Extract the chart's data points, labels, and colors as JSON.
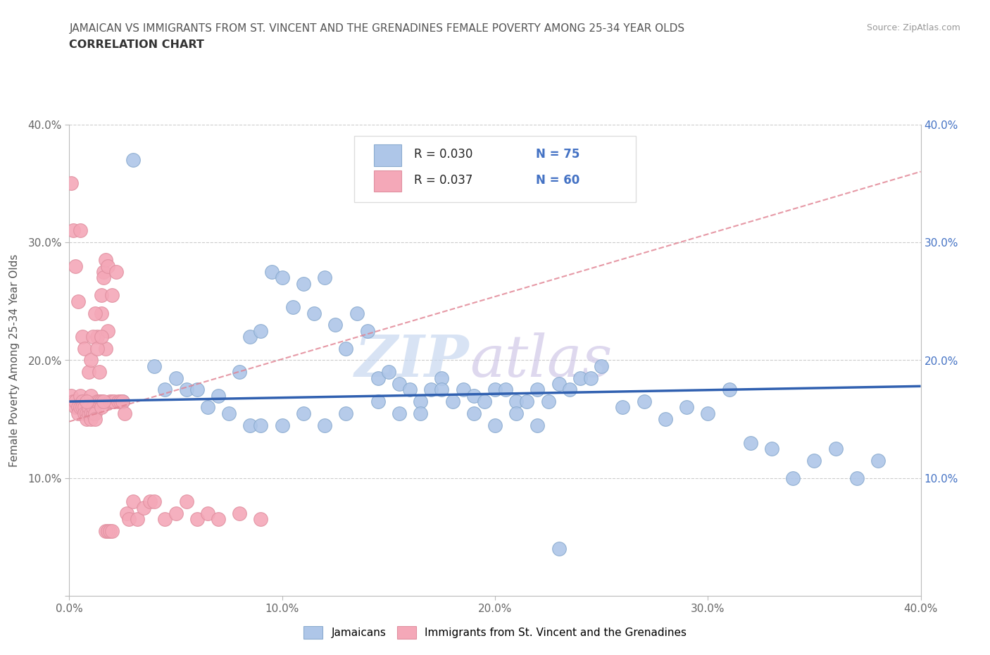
{
  "title_line1": "JAMAICAN VS IMMIGRANTS FROM ST. VINCENT AND THE GRENADINES FEMALE POVERTY AMONG 25-34 YEAR OLDS",
  "title_line2": "CORRELATION CHART",
  "source": "Source: ZipAtlas.com",
  "ylabel": "Female Poverty Among 25-34 Year Olds",
  "xlim": [
    0.0,
    0.4
  ],
  "ylim": [
    0.0,
    0.4
  ],
  "xtick_labels": [
    "0.0%",
    "10.0%",
    "20.0%",
    "30.0%",
    "40.0%"
  ],
  "xtick_vals": [
    0.0,
    0.1,
    0.2,
    0.3,
    0.4
  ],
  "ytick_labels": [
    "",
    "10.0%",
    "20.0%",
    "30.0%",
    "40.0%"
  ],
  "ytick_vals": [
    0.0,
    0.1,
    0.2,
    0.3,
    0.4
  ],
  "right_ytick_labels": [
    "10.0%",
    "20.0%",
    "30.0%",
    "40.0%"
  ],
  "right_ytick_vals": [
    0.1,
    0.2,
    0.3,
    0.4
  ],
  "blue_color": "#aec6e8",
  "pink_color": "#f4a8b8",
  "line_blue_color": "#3060b0",
  "line_pink_dashed_color": "#e08090",
  "watermark_zip": "ZIP",
  "watermark_atlas": "atlas",
  "legend_label1": "Jamaicans",
  "legend_label2": "Immigrants from St. Vincent and the Grenadines",
  "j_x": [
    0.005,
    0.015,
    0.025,
    0.03,
    0.04,
    0.045,
    0.05,
    0.055,
    0.06,
    0.065,
    0.07,
    0.075,
    0.08,
    0.085,
    0.09,
    0.095,
    0.1,
    0.105,
    0.11,
    0.115,
    0.12,
    0.125,
    0.13,
    0.135,
    0.14,
    0.145,
    0.15,
    0.155,
    0.16,
    0.165,
    0.17,
    0.175,
    0.18,
    0.185,
    0.19,
    0.195,
    0.2,
    0.205,
    0.21,
    0.215,
    0.22,
    0.225,
    0.23,
    0.235,
    0.24,
    0.245,
    0.25,
    0.26,
    0.27,
    0.28,
    0.29,
    0.3,
    0.31,
    0.32,
    0.33,
    0.34,
    0.35,
    0.36,
    0.37,
    0.38,
    0.085,
    0.09,
    0.1,
    0.11,
    0.12,
    0.13,
    0.145,
    0.155,
    0.165,
    0.175,
    0.19,
    0.2,
    0.21,
    0.22,
    0.23
  ],
  "j_y": [
    0.165,
    0.165,
    0.165,
    0.37,
    0.195,
    0.175,
    0.185,
    0.175,
    0.175,
    0.16,
    0.17,
    0.155,
    0.19,
    0.22,
    0.225,
    0.275,
    0.27,
    0.245,
    0.265,
    0.24,
    0.27,
    0.23,
    0.21,
    0.24,
    0.225,
    0.185,
    0.19,
    0.18,
    0.175,
    0.165,
    0.175,
    0.185,
    0.165,
    0.175,
    0.17,
    0.165,
    0.175,
    0.175,
    0.165,
    0.165,
    0.175,
    0.165,
    0.18,
    0.175,
    0.185,
    0.185,
    0.195,
    0.16,
    0.165,
    0.15,
    0.16,
    0.155,
    0.175,
    0.13,
    0.125,
    0.1,
    0.115,
    0.125,
    0.1,
    0.115,
    0.145,
    0.145,
    0.145,
    0.155,
    0.145,
    0.155,
    0.165,
    0.155,
    0.155,
    0.175,
    0.155,
    0.145,
    0.155,
    0.145,
    0.04
  ],
  "sv_x": [
    0.001,
    0.002,
    0.003,
    0.003,
    0.004,
    0.004,
    0.005,
    0.005,
    0.006,
    0.006,
    0.007,
    0.007,
    0.008,
    0.008,
    0.009,
    0.009,
    0.01,
    0.01,
    0.01,
    0.011,
    0.011,
    0.012,
    0.012,
    0.013,
    0.013,
    0.014,
    0.015,
    0.015,
    0.015,
    0.015,
    0.016,
    0.016,
    0.017,
    0.017,
    0.018,
    0.018,
    0.019,
    0.02,
    0.02,
    0.021,
    0.022,
    0.023,
    0.024,
    0.025,
    0.026,
    0.027,
    0.028,
    0.03,
    0.032,
    0.035,
    0.038,
    0.04,
    0.045,
    0.05,
    0.055,
    0.06,
    0.065,
    0.07,
    0.08,
    0.09
  ],
  "sv_y": [
    0.17,
    0.165,
    0.16,
    0.165,
    0.16,
    0.155,
    0.16,
    0.17,
    0.165,
    0.16,
    0.16,
    0.155,
    0.155,
    0.15,
    0.155,
    0.16,
    0.155,
    0.17,
    0.15,
    0.155,
    0.16,
    0.155,
    0.15,
    0.22,
    0.165,
    0.165,
    0.165,
    0.16,
    0.24,
    0.255,
    0.275,
    0.27,
    0.21,
    0.285,
    0.225,
    0.28,
    0.165,
    0.165,
    0.255,
    0.165,
    0.275,
    0.165,
    0.165,
    0.165,
    0.155,
    0.07,
    0.065,
    0.08,
    0.065,
    0.075,
    0.08,
    0.08,
    0.065,
    0.07,
    0.08,
    0.065,
    0.07,
    0.065,
    0.07,
    0.065
  ],
  "sv_extra_x": [
    0.001,
    0.002,
    0.003,
    0.004,
    0.005,
    0.006,
    0.007,
    0.008,
    0.009,
    0.01,
    0.011,
    0.012,
    0.013,
    0.014,
    0.015,
    0.016,
    0.017,
    0.018,
    0.019,
    0.02
  ],
  "sv_extra_y": [
    0.35,
    0.31,
    0.28,
    0.25,
    0.31,
    0.22,
    0.21,
    0.165,
    0.19,
    0.2,
    0.22,
    0.24,
    0.21,
    0.19,
    0.22,
    0.165,
    0.055,
    0.055,
    0.055,
    0.055
  ],
  "blue_line_y0": 0.165,
  "blue_line_y1": 0.178,
  "pink_line_y0": 0.148,
  "pink_line_y1": 0.36
}
